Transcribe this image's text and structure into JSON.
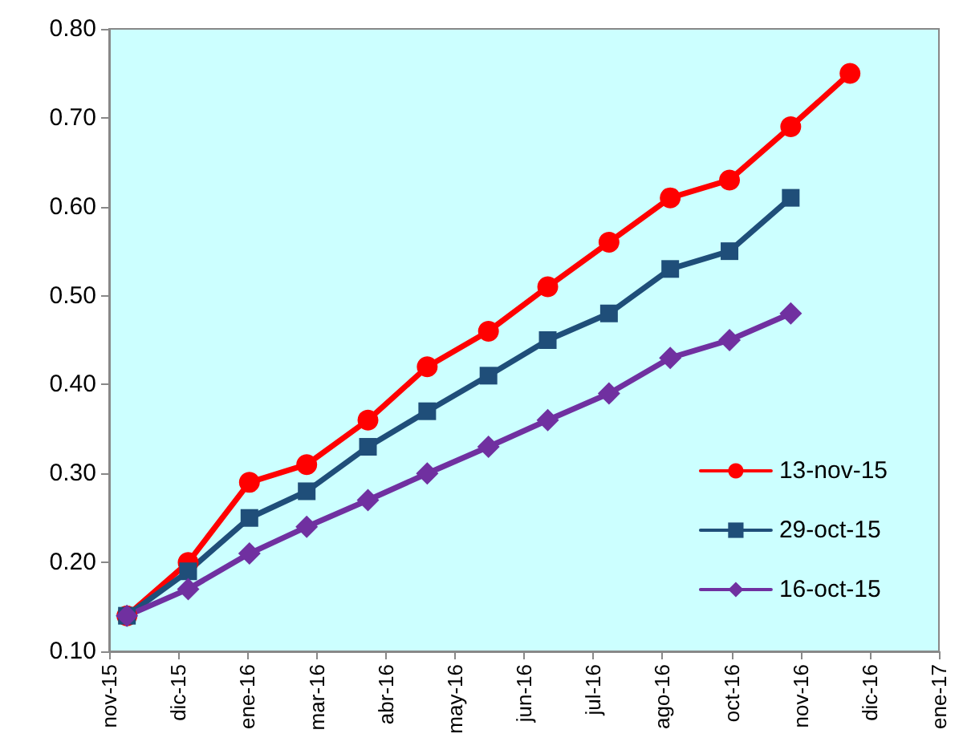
{
  "chart_data": {
    "type": "line",
    "x": [
      "2015-11-30",
      "2015-12-31",
      "2016-01-31",
      "2016-02-29",
      "2016-03-31",
      "2016-04-30",
      "2016-05-31",
      "2016-06-30",
      "2016-07-31",
      "2016-08-31",
      "2016-09-30",
      "2016-10-31",
      "2016-11-30"
    ],
    "series": [
      {
        "name": "13-nov-15",
        "color": "#ff0000",
        "marker": "circle",
        "values": [
          0.14,
          0.2,
          0.29,
          0.31,
          0.36,
          0.42,
          0.46,
          0.51,
          0.56,
          0.61,
          0.63,
          0.69,
          0.75
        ]
      },
      {
        "name": "29-oct-15",
        "color": "#1f4e79",
        "marker": "square",
        "values": [
          0.14,
          0.19,
          0.25,
          0.28,
          0.33,
          0.37,
          0.41,
          0.45,
          0.48,
          0.53,
          0.55,
          0.61,
          null
        ]
      },
      {
        "name": "16-oct-15",
        "color": "#7030a0",
        "marker": "diamond",
        "values": [
          0.14,
          0.17,
          0.21,
          0.24,
          0.27,
          0.3,
          0.33,
          0.36,
          0.39,
          0.43,
          0.45,
          0.48,
          null
        ]
      }
    ],
    "xlim": [
      "2015-11-21",
      "2017-01-14"
    ],
    "xticks": [
      {
        "value": "2015-11-21",
        "label": "nov-15"
      },
      {
        "value": "2015-12-26",
        "label": "dic-15"
      },
      {
        "value": "2016-01-30",
        "label": "ene-16"
      },
      {
        "value": "2016-03-05",
        "label": "mar-16"
      },
      {
        "value": "2016-04-09",
        "label": "abr-16"
      },
      {
        "value": "2016-05-14",
        "label": "may-16"
      },
      {
        "value": "2016-06-18",
        "label": "jun-16"
      },
      {
        "value": "2016-07-23",
        "label": "jul-16"
      },
      {
        "value": "2016-08-27",
        "label": "ago-16"
      },
      {
        "value": "2016-10-01",
        "label": "oct-16"
      },
      {
        "value": "2016-11-05",
        "label": "nov-16"
      },
      {
        "value": "2016-12-10",
        "label": "dic-16"
      },
      {
        "value": "2017-01-14",
        "label": "ene-17"
      }
    ],
    "ylim": [
      0.1,
      0.8
    ],
    "yticks": [
      {
        "value": 0.1,
        "label": "0.10"
      },
      {
        "value": 0.2,
        "label": "0.20"
      },
      {
        "value": 0.3,
        "label": "0.30"
      },
      {
        "value": 0.4,
        "label": "0.40"
      },
      {
        "value": 0.5,
        "label": "0.50"
      },
      {
        "value": 0.6,
        "label": "0.60"
      },
      {
        "value": 0.7,
        "label": "0.70"
      },
      {
        "value": 0.8,
        "label": "0.80"
      }
    ],
    "grid": false,
    "legend": "bottom right",
    "line_style": "solid"
  }
}
